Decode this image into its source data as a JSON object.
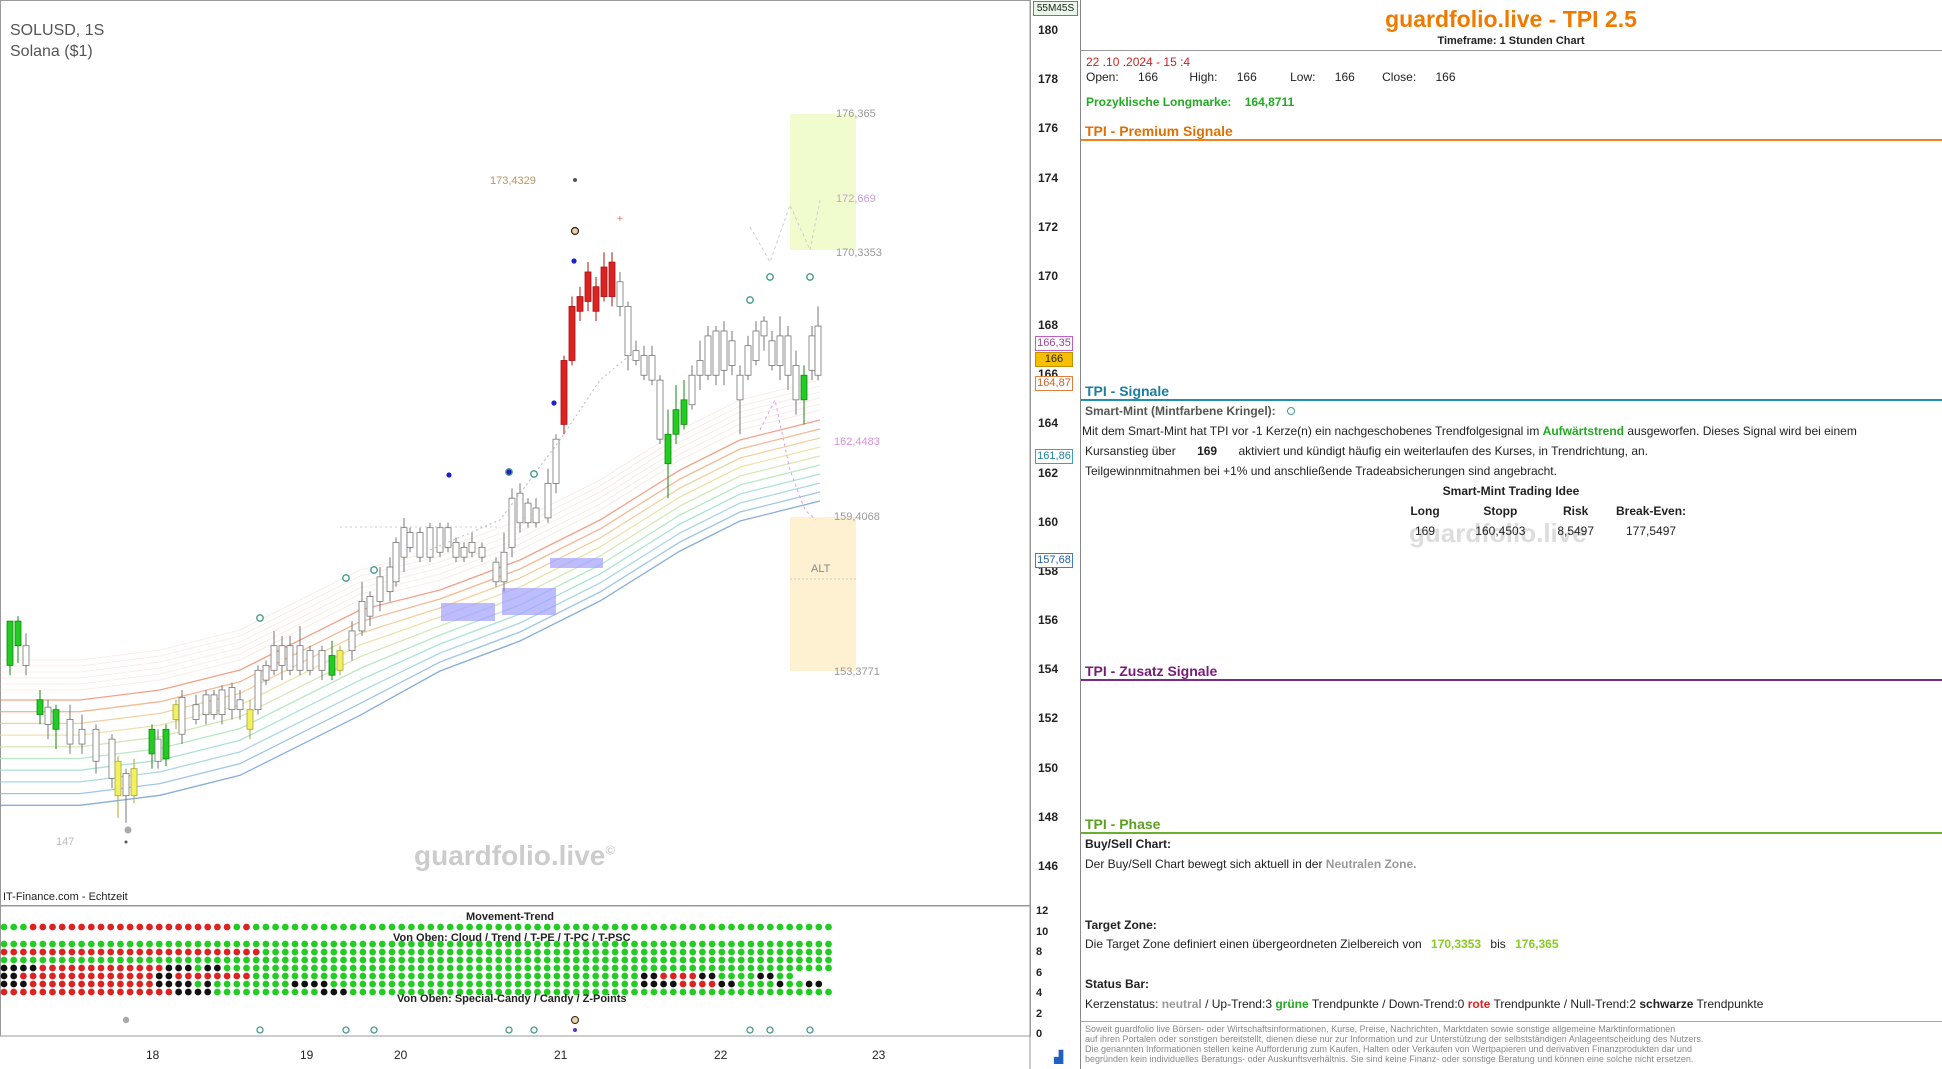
{
  "chart": {
    "symbol": "SOLUSD, 1S",
    "name": "Solana ($1)",
    "source": "IT-Finance.com - Echtzeit",
    "watermark": "guardfolio.live",
    "watermark_sup": "©",
    "timer_badge": "55M45S",
    "y_ticks": [
      "180",
      "178",
      "176",
      "174",
      "172",
      "170",
      "168",
      "166",
      "164",
      "162",
      "160",
      "158",
      "156",
      "154",
      "152",
      "150",
      "148",
      "146"
    ],
    "x_ticks": [
      "18",
      "19",
      "20",
      "21",
      "22",
      "23"
    ],
    "annotations": {
      "top_target": "176,365",
      "high_label": "173,4329",
      "level_172": "172,669",
      "level_170": "170,3353",
      "level_162": "162,4483",
      "level_159": "159,4068",
      "level_153": "153,3771",
      "low_label": "147",
      "alt_label": "ALT"
    },
    "price_boxes": {
      "p1": "166,35",
      "p2": "166",
      "p3": "164,87",
      "p4": "161,86",
      "p5": "157,68"
    },
    "sub": {
      "title1": "Movement-Trend",
      "title2": "Von Oben: Cloud / Trend / T-PE / T-PC / T-PSC",
      "title3": "Von Oben: Special-Candy / Candy / Z-Points",
      "y_ticks": [
        "12",
        "10",
        "8",
        "6",
        "4",
        "2",
        "0"
      ]
    },
    "colors": {
      "bull": "#22cc22",
      "bear": "#dd2222",
      "neutral": "#111111",
      "ribbon_top": "#f08060",
      "ribbon_bottom": "#5080c0"
    }
  },
  "panel": {
    "title": "guardfolio.live - TPI 2.5",
    "timeframe": "Timeframe: 1 Stunden Chart",
    "datetime": "22 .10 .2024  - 15 :4",
    "ohlc": [
      {
        "label": "Open:",
        "value": "166"
      },
      {
        "label": "High:",
        "value": "166"
      },
      {
        "label": "Low:",
        "value": "166"
      },
      {
        "label": "Close:",
        "value": "166"
      }
    ],
    "longmarke_label": "Prozyklische Longmarke:",
    "longmarke_value": "164,8711",
    "premium_title": "TPI - Premium Signale",
    "signale_title": "TPI - Signale",
    "smartmint_head": "Smart-Mint (Mintfarbene Kringel):",
    "smartmint_line1a": "Mit dem Smart-Mint hat TPI vor -1  Kerze(n) ein nachgeschobenes Trendfolgesignal im",
    "smartmint_line1b": "Aufwärtstrend",
    "smartmint_line1c": "ausgeworfen. Dieses Signal wird bei einem",
    "smartmint_line2a": "Kursanstieg über",
    "smartmint_line2b": "169",
    "smartmint_line2c": "aktiviert und kündigt häufig ein weiterlaufen des Kurses, in Trendrichtung, an.",
    "smartmint_line3": "Teilgewinnmitnahmen bei +1% und anschließende Tradeabsicherungen sind angebracht.",
    "idea_title": "Smart-Mint Trading Idee",
    "idea_headers": [
      "Long",
      "Stopp",
      "Risk",
      "Break-Even:"
    ],
    "idea_values": [
      "169",
      "160,4503",
      "8,5497",
      "177,5497"
    ],
    "idea_watermark": "guardfolio.live",
    "zusatz_title": "TPI - Zusatz Signale",
    "phase_title": "TPI - Phase",
    "buysell_head": "Buy/Sell Chart:",
    "buysell_text": "Der Buy/Sell Chart bewegt sich aktuell in der",
    "buysell_zone": "Neutralen Zone.",
    "target_head": "Target Zone:",
    "target_text": "Die Target Zone definiert einen übergeordneten Zielbereich von",
    "target_from": "170,3353",
    "target_bis": "bis",
    "target_to": "176,365",
    "status_head": "Status Bar:",
    "status_a": "Kerzenstatus:",
    "status_neutral": "neutral",
    "status_b": "/ Up-Trend:3",
    "status_green": "grüne",
    "status_c": "Trendpunkte  / Down-Trend:0",
    "status_red": "rote",
    "status_d": "Trendpunkte / Null-Trend:2",
    "status_black": "schwarze",
    "status_e": "Trendpunkte",
    "disclaimer": [
      "Soweit guardfolio live Börsen- oder Wirtschaftsinformationen, Kurse, Preise, Nachrichten, Marktdaten sowie sonstige allgemeine Marktinformationen",
      "auf ihren Portalen oder sonstigen bereitstellt, dienen diese nur zur Information und zur Unterstützung der selbstständigen Anlageentscheidung des Nutzers.",
      "Die genannten Informationen stellen keine Aufforderung zum Kaufen, Halten oder Verkaufen von Wertpapieren und derivativen Finanzprodukten dar und",
      "begründen kein individuelles Beratungs- oder Auskunftsverhältnis. Sie sind keine Finanz- oder sonstige Beratung und können eine solche nicht ersetzen."
    ]
  }
}
